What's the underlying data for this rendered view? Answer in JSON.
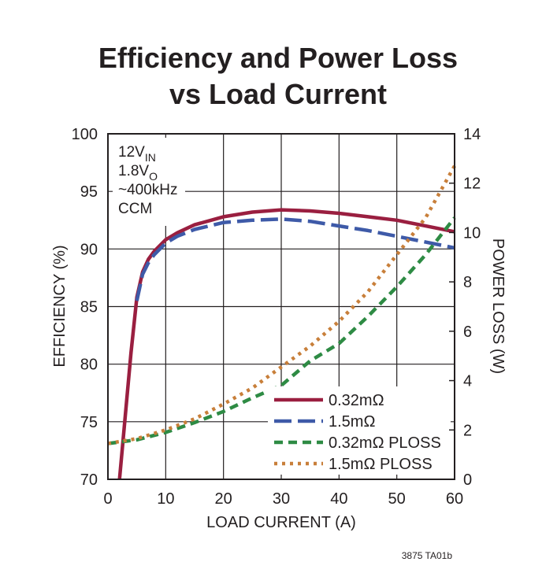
{
  "chart_data": {
    "type": "line",
    "title_lines": [
      "Efficiency and Power Loss",
      "vs Load Current"
    ],
    "xlabel": "LOAD CURRENT (A)",
    "ylabel_left": "EFFICIENCY (%)",
    "ylabel_right": "POWER LOSS (W)",
    "xlim": [
      0,
      60
    ],
    "ylim_left": [
      70,
      100
    ],
    "ylim_right": [
      0,
      14
    ],
    "x_ticks": [
      "0",
      "10",
      "20",
      "30",
      "40",
      "50",
      "60"
    ],
    "y_ticks_left": [
      "70",
      "75",
      "80",
      "85",
      "90",
      "95",
      "100"
    ],
    "y_ticks_right": [
      "0",
      "2",
      "4",
      "6",
      "8",
      "10",
      "12",
      "14"
    ],
    "grid": true,
    "annotation": [
      {
        "main": "12V",
        "sub": "IN"
      },
      {
        "main": "1.8V",
        "sub": "O"
      },
      {
        "main": "~400kHz",
        "sub": ""
      },
      {
        "main": "CCM",
        "sub": ""
      }
    ],
    "figure_code": "3875 TA01b",
    "legend_position": "bottom-right",
    "series": [
      {
        "name": "0.32mΩ",
        "axis": "left",
        "color": "#9a1f40",
        "style": "solid",
        "x": [
          2,
          3,
          4,
          5,
          6,
          7,
          8,
          9,
          10,
          12,
          15,
          20,
          25,
          30,
          35,
          40,
          45,
          50,
          55,
          60
        ],
        "y": [
          70,
          75.5,
          81,
          85.8,
          88,
          89.1,
          89.8,
          90.3,
          90.8,
          91.4,
          92.1,
          92.8,
          93.2,
          93.4,
          93.3,
          93.1,
          92.8,
          92.5,
          92.0,
          91.5
        ]
      },
      {
        "name": "1.5mΩ",
        "axis": "left",
        "color": "#3e5aa8",
        "style": "longdash",
        "x": [
          5,
          6,
          7,
          8,
          9,
          10,
          12,
          15,
          20,
          25,
          30,
          35,
          40,
          45,
          50,
          55,
          60
        ],
        "y": [
          85.5,
          87.8,
          88.8,
          89.5,
          90.0,
          90.5,
          91.1,
          91.7,
          92.3,
          92.5,
          92.6,
          92.4,
          92.0,
          91.6,
          91.1,
          90.6,
          90.1
        ]
      },
      {
        "name": "0.32mΩ PLOSS",
        "axis": "right",
        "color": "#2e8b44",
        "style": "dash",
        "x": [
          0,
          5,
          10,
          15,
          20,
          25,
          30,
          35,
          40,
          45,
          50,
          55,
          60
        ],
        "y": [
          1.45,
          1.6,
          1.9,
          2.3,
          2.75,
          3.3,
          3.8,
          4.8,
          5.5,
          6.6,
          7.8,
          9.1,
          10.6
        ]
      },
      {
        "name": "1.5mΩ PLOSS",
        "axis": "right",
        "color": "#c87f3a",
        "style": "dot",
        "x": [
          0,
          5,
          10,
          15,
          20,
          25,
          30,
          35,
          40,
          45,
          50,
          55,
          60
        ],
        "y": [
          1.45,
          1.65,
          2.0,
          2.45,
          3.05,
          3.7,
          4.55,
          5.4,
          6.4,
          7.6,
          9.1,
          10.6,
          12.7
        ]
      }
    ]
  }
}
